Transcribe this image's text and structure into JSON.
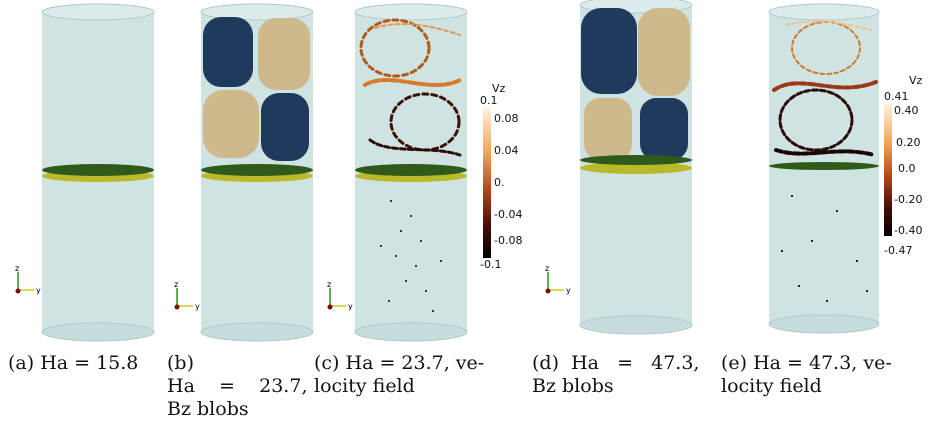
{
  "panels": [
    {
      "id": "a",
      "caption": "(a) Ha = 15.8"
    },
    {
      "id": "b",
      "caption": "(b) Ha = 23.7, B_z blobs",
      "line1": "(b)",
      "line2": "Ha    =    23.7,",
      "line3": "Bz blobs"
    },
    {
      "id": "c",
      "caption": "(c) Ha = 23.7, velocity field",
      "line1": "(c) Ha = 23.7, ve-",
      "line2": "locity field"
    },
    {
      "id": "d",
      "caption": "(d) Ha = 47.3, B_z blobs",
      "line1": "(d)  Ha   =   47.3,",
      "line2": "Bz blobs"
    },
    {
      "id": "e",
      "caption": "(e) Ha = 47.3, velocity field",
      "line1": "(e) Ha = 47.3, ve-",
      "line2": "locity field"
    }
  ],
  "colorbar_c": {
    "title": "Vz",
    "ticks": [
      "0.1",
      "0.08",
      "0.04",
      "0.",
      "-0.04",
      "-0.08",
      "-0.1"
    ]
  },
  "colorbar_e": {
    "title": "Vz",
    "ticks": [
      "0.41",
      "0.40",
      "0.20",
      "0.0",
      "-0.20",
      "-0.40",
      "-0.47"
    ]
  },
  "axes_labels": {
    "z": "z",
    "y": "y"
  },
  "colors": {
    "cylinder": "#cfe3e3",
    "cylinder_edge": "#a9c3c3",
    "disc_dark": "#2f5a1c",
    "disc_yellow": "#b9b92a",
    "blob_blue": "#1e3a5c",
    "blob_tan": "#cdb98c"
  }
}
